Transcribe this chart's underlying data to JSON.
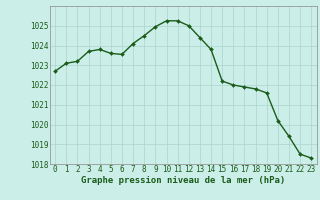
{
  "x": [
    0,
    1,
    2,
    3,
    4,
    5,
    6,
    7,
    8,
    9,
    10,
    11,
    12,
    13,
    14,
    15,
    16,
    17,
    18,
    19,
    20,
    21,
    22,
    23
  ],
  "y": [
    1022.7,
    1023.1,
    1023.2,
    1023.7,
    1023.8,
    1023.6,
    1023.55,
    1024.1,
    1024.5,
    1024.95,
    1025.25,
    1025.25,
    1025.0,
    1024.4,
    1023.8,
    1022.2,
    1022.0,
    1021.9,
    1021.8,
    1021.6,
    1020.2,
    1019.4,
    1018.5,
    1018.3
  ],
  "line_color": "#1a5c1a",
  "marker": "D",
  "marker_size": 2.0,
  "bg_color": "#cceee8",
  "grid_color": "#aad4cc",
  "xlabel": "Graphe pression niveau de la mer (hPa)",
  "ylim": [
    1018,
    1026
  ],
  "yticks": [
    1018,
    1019,
    1020,
    1021,
    1022,
    1023,
    1024,
    1025
  ],
  "xticks": [
    0,
    1,
    2,
    3,
    4,
    5,
    6,
    7,
    8,
    9,
    10,
    11,
    12,
    13,
    14,
    15,
    16,
    17,
    18,
    19,
    20,
    21,
    22,
    23
  ],
  "tick_fontsize": 5.5,
  "line_width": 1.0,
  "xlabel_fontsize": 6.5
}
